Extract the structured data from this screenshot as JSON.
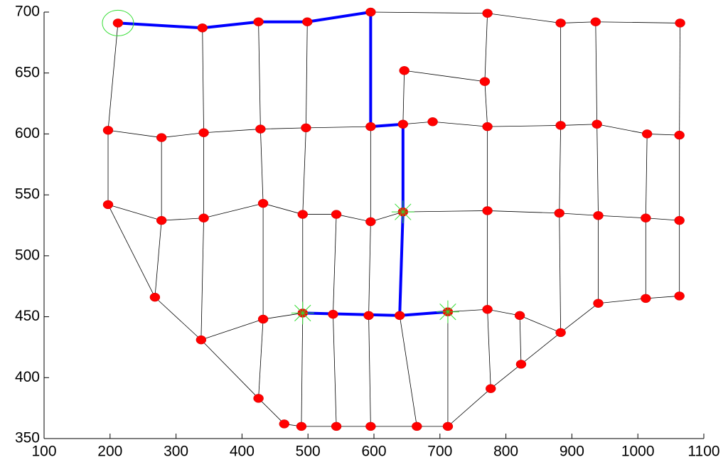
{
  "chart_data": {
    "type": "scatter",
    "x": [
      212,
      340,
      425,
      499,
      595,
      772,
      883,
      936,
      1064,
      646,
      768,
      197,
      278,
      342,
      428,
      497,
      595,
      644,
      689,
      772,
      883,
      938,
      1014,
      1063,
      197,
      278,
      342,
      432,
      492,
      543,
      595,
      644,
      772,
      881,
      940,
      1012,
      1063,
      268,
      338,
      432,
      492,
      538,
      592,
      639,
      712,
      772,
      821,
      883,
      940,
      1012,
      1063,
      425,
      464,
      490,
      543,
      595,
      665,
      712,
      777,
      823
    ],
    "values": [
      691,
      687,
      692,
      692,
      700,
      699,
      691,
      692,
      691,
      652,
      643,
      603,
      597,
      601,
      604,
      605,
      606,
      608,
      610,
      606,
      607,
      608,
      600,
      599,
      542,
      529,
      531,
      543,
      534,
      534,
      528,
      536,
      537,
      535,
      533,
      531,
      529,
      466,
      431,
      448,
      453,
      452,
      451,
      451,
      454,
      456,
      451,
      437,
      461,
      465,
      467,
      383,
      362,
      360,
      360,
      360,
      360,
      360,
      391,
      411
    ],
    "color": "#ff0000",
    "path_color": "#0000ff",
    "xlim": [
      100,
      1100
    ],
    "ylim": [
      350,
      700
    ],
    "xticks": [
      100,
      200,
      300,
      400,
      500,
      600,
      700,
      800,
      900,
      1000,
      1100
    ],
    "yticks": [
      350,
      400,
      450,
      500,
      550,
      600,
      650,
      700
    ]
  }
}
